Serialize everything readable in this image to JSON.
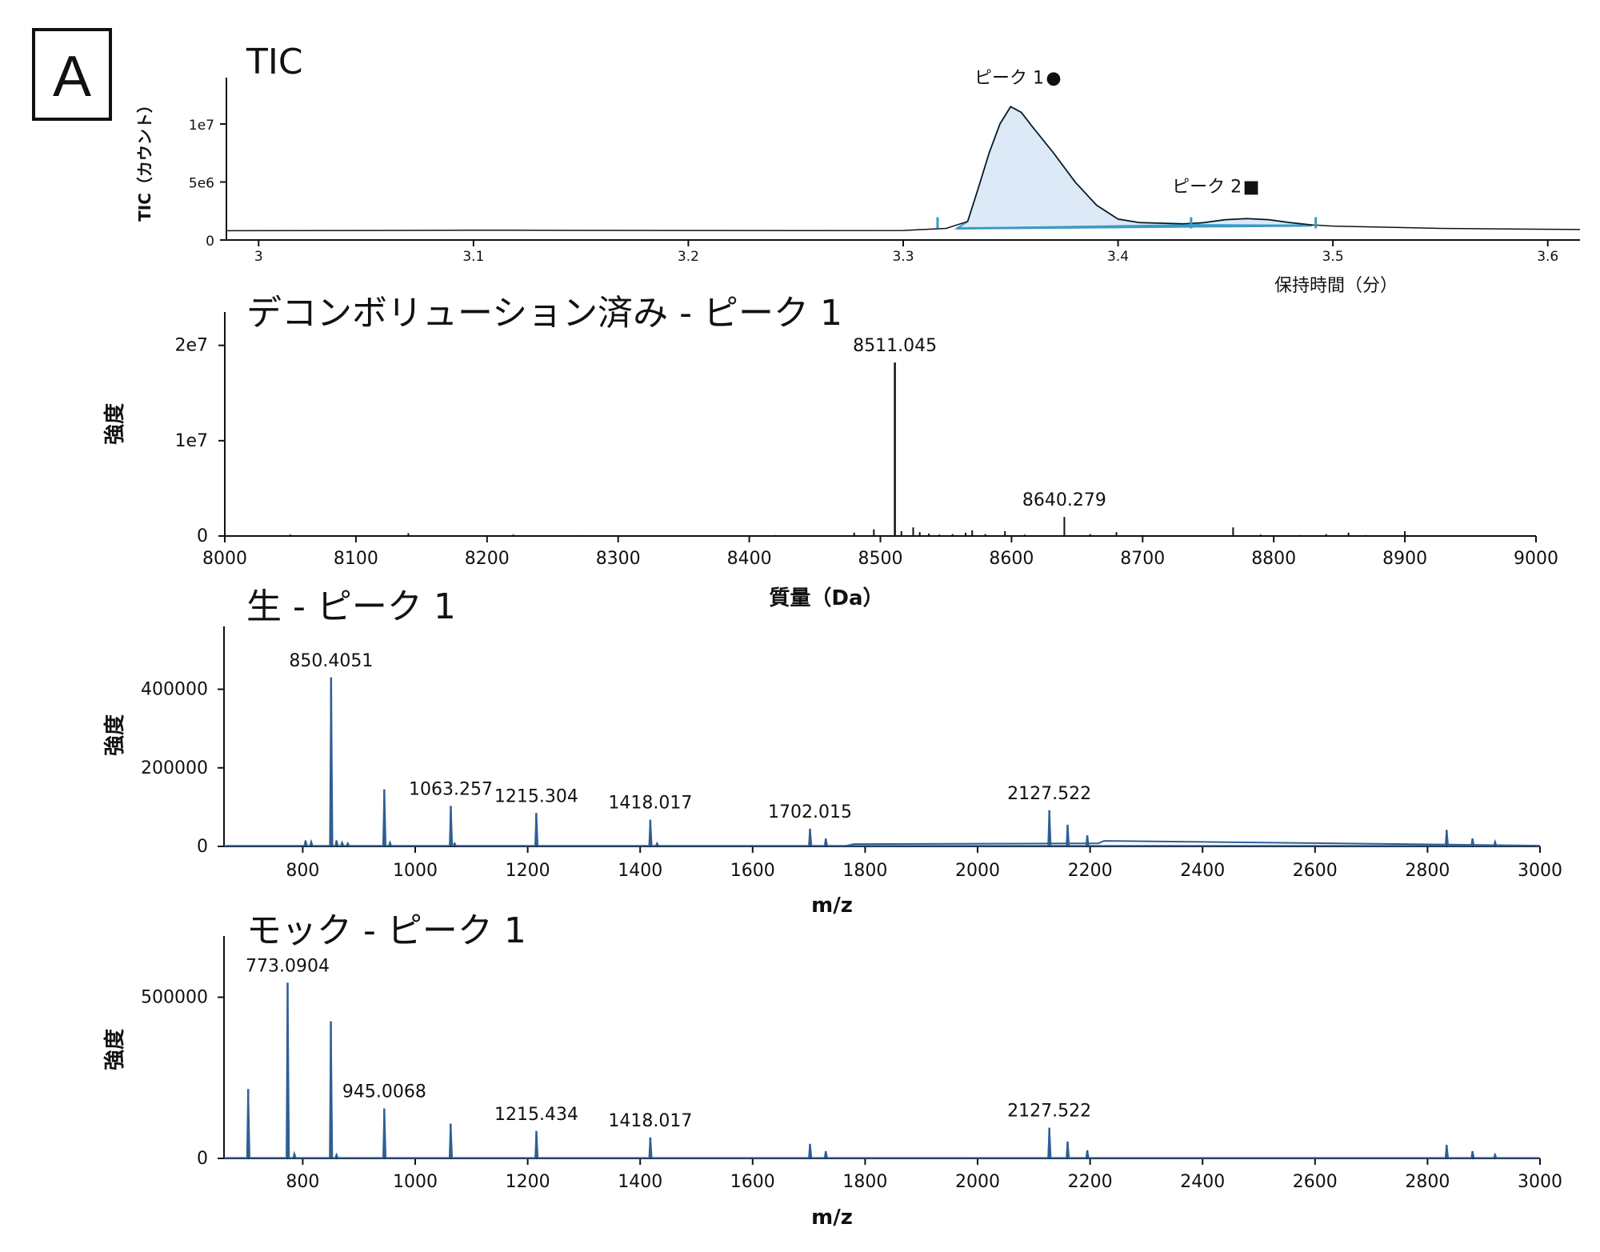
{
  "panel_label": "A",
  "colors": {
    "spectrum": "#2f5f96",
    "tic_line": "#3a9ac8",
    "tic_fill": "#dde9f6",
    "baseline": "#111111"
  },
  "chart_data": [
    {
      "id": "tic",
      "type": "area",
      "title": "TIC",
      "xlabel": "保持時間（分）",
      "ylabel": "TIC（カウント）",
      "xlim": [
        2.985,
        3.615
      ],
      "ylim": [
        0,
        14000000
      ],
      "xticks": [
        3.0,
        3.1,
        3.2,
        3.3,
        3.4,
        3.5,
        3.6
      ],
      "xtick_labels": [
        "3",
        "3.1",
        "3.2",
        "3.3",
        "3.4",
        "3.5",
        "3.6"
      ],
      "yticks": [
        0,
        5000000,
        10000000
      ],
      "ytick_labels": [
        "0",
        "5e6",
        "1e7"
      ],
      "series": [
        {
          "x": [
            2.985,
            3.05,
            3.1,
            3.15,
            3.2,
            3.25,
            3.3,
            3.32,
            3.33,
            3.335,
            3.34,
            3.345,
            3.35,
            3.355,
            3.36,
            3.37,
            3.38,
            3.39,
            3.4,
            3.41,
            3.42,
            3.43,
            3.44,
            3.45,
            3.46,
            3.47,
            3.48,
            3.49,
            3.5,
            3.55,
            3.615
          ],
          "y": [
            800000,
            820000,
            850000,
            830000,
            820000,
            810000,
            820000,
            1000000,
            1600000,
            4500000,
            7500000,
            10000000,
            11500000,
            11000000,
            9800000,
            7500000,
            5000000,
            3000000,
            1800000,
            1500000,
            1450000,
            1400000,
            1500000,
            1750000,
            1850000,
            1750000,
            1500000,
            1300000,
            1200000,
            1000000,
            900000
          ]
        }
      ],
      "integrated_peaks": [
        {
          "start": [
            3.325,
            1000000
          ],
          "end": [
            3.435,
            1300000
          ],
          "x": [
            3.325,
            3.33,
            3.335,
            3.34,
            3.345,
            3.35,
            3.355,
            3.36,
            3.37,
            3.38,
            3.39,
            3.4,
            3.41,
            3.42,
            3.43,
            3.435
          ],
          "y": [
            1000000,
            1600000,
            4500000,
            7500000,
            10000000,
            11500000,
            11000000,
            9800000,
            7500000,
            5000000,
            3000000,
            1800000,
            1500000,
            1450000,
            1400000,
            1350000
          ]
        },
        {
          "start": [
            3.435,
            1300000
          ],
          "end": [
            3.49,
            1250000
          ],
          "x": [
            3.435,
            3.44,
            3.45,
            3.46,
            3.47,
            3.48,
            3.49
          ],
          "y": [
            1350000,
            1500000,
            1750000,
            1850000,
            1750000,
            1500000,
            1300000
          ]
        }
      ],
      "markers_x": [
        3.316,
        3.434,
        3.492
      ],
      "annotations": [
        {
          "text": "ピーク 1",
          "symbol": "●",
          "x": 3.37,
          "y": 13500000
        },
        {
          "text": "ピーク 2",
          "symbol": "■",
          "x": 3.462,
          "y": 4100000
        }
      ]
    },
    {
      "id": "deconvoluted",
      "type": "bar",
      "title": "デコンボリューション済み - ピーク 1",
      "xlabel": "質量（Da）",
      "ylabel": "強度",
      "xlim": [
        8000,
        9000
      ],
      "ylim": [
        0,
        23500000
      ],
      "xticks": [
        8000,
        8100,
        8200,
        8300,
        8400,
        8500,
        8600,
        8700,
        8800,
        8900,
        9000
      ],
      "yticks": [
        0,
        10000000,
        20000000
      ],
      "ytick_labels": [
        "0",
        "1e7",
        "2e7"
      ],
      "x": [
        8050,
        8140,
        8220,
        8270,
        8350,
        8420,
        8480,
        8495,
        8511.045,
        8516,
        8525,
        8530,
        8537,
        8545,
        8555,
        8565,
        8570,
        8580,
        8595,
        8610,
        8640.279,
        8660,
        8680,
        8700,
        8769,
        8790,
        8820,
        8840,
        8857,
        8870,
        8900
      ],
      "y": [
        150000,
        300000,
        150000,
        100000,
        80000,
        100000,
        350000,
        700000,
        18200000,
        500000,
        900000,
        400000,
        250000,
        150000,
        200000,
        350000,
        600000,
        200000,
        500000,
        150000,
        2000000,
        200000,
        400000,
        100000,
        900000,
        150000,
        100000,
        200000,
        350000,
        100000,
        500000
      ],
      "peak_labels": [
        {
          "text": "8511.045",
          "x": 8511.045,
          "y": 18200000
        },
        {
          "text": "8640.279",
          "x": 8640.279,
          "y": 2000000
        }
      ]
    },
    {
      "id": "raw",
      "type": "line",
      "title": "生 - ピーク 1",
      "xlabel": "m/z",
      "ylabel": "強度",
      "xlim": [
        660,
        3000
      ],
      "ylim": [
        0,
        560000
      ],
      "xticks": [
        800,
        1000,
        1200,
        1400,
        1600,
        1800,
        2000,
        2200,
        2400,
        2600,
        2800,
        3000
      ],
      "yticks": [
        0,
        200000,
        400000
      ],
      "ytick_labels": [
        "0",
        "200000",
        "400000"
      ],
      "base_y": 1500,
      "spikes": [
        {
          "x": 805,
          "y": 15000
        },
        {
          "x": 815,
          "y": 12000
        },
        {
          "x": 850.4051,
          "y": 430000
        },
        {
          "x": 860,
          "y": 15000
        },
        {
          "x": 870,
          "y": 10000
        },
        {
          "x": 880,
          "y": 8000
        },
        {
          "x": 945,
          "y": 145000
        },
        {
          "x": 955,
          "y": 10000
        },
        {
          "x": 1063.257,
          "y": 103000
        },
        {
          "x": 1070,
          "y": 8000
        },
        {
          "x": 1215.304,
          "y": 85000
        },
        {
          "x": 1418.017,
          "y": 68000
        },
        {
          "x": 1430,
          "y": 8000
        },
        {
          "x": 1702.015,
          "y": 45000
        },
        {
          "x": 1730,
          "y": 20000
        },
        {
          "x": 2127.522,
          "y": 92000
        },
        {
          "x": 2160,
          "y": 55000
        },
        {
          "x": 2195,
          "y": 28000
        },
        {
          "x": 2834,
          "y": 42000
        },
        {
          "x": 2880,
          "y": 20000
        },
        {
          "x": 2920,
          "y": 12000
        }
      ],
      "plateaus": [
        {
          "x": [
            1765,
            1780,
            2000,
            2215,
            2225,
            2560,
            2990,
            3000
          ],
          "y": [
            1500,
            6000,
            7000,
            8000,
            14000,
            9000,
            2000,
            1500
          ]
        }
      ],
      "peak_labels": [
        {
          "text": "850.4051",
          "x": 850.4051,
          "y": 430000
        },
        {
          "text": "1063.257",
          "x": 1063.257,
          "y": 103000
        },
        {
          "text": "1215.304",
          "x": 1215.304,
          "y": 85000
        },
        {
          "text": "1418.017",
          "x": 1418.017,
          "y": 68000
        },
        {
          "text": "1702.015",
          "x": 1702.015,
          "y": 45000
        },
        {
          "text": "2127.522",
          "x": 2127.522,
          "y": 92000
        }
      ]
    },
    {
      "id": "mock",
      "type": "line",
      "title": "モック - ピーク 1",
      "xlabel": "m/z",
      "ylabel": "強度",
      "xlim": [
        660,
        3000
      ],
      "ylim": [
        0,
        690000
      ],
      "xticks": [
        800,
        1000,
        1200,
        1400,
        1600,
        1800,
        2000,
        2200,
        2400,
        2600,
        2800,
        3000
      ],
      "yticks": [
        0,
        500000
      ],
      "ytick_labels": [
        "0",
        "500000"
      ],
      "base_y": 1500,
      "spikes": [
        {
          "x": 703,
          "y": 215000
        },
        {
          "x": 773.0904,
          "y": 545000
        },
        {
          "x": 785,
          "y": 15000
        },
        {
          "x": 850,
          "y": 425000
        },
        {
          "x": 860,
          "y": 12000
        },
        {
          "x": 945.0068,
          "y": 155000
        },
        {
          "x": 1063,
          "y": 108000
        },
        {
          "x": 1215.434,
          "y": 85000
        },
        {
          "x": 1418.017,
          "y": 65000
        },
        {
          "x": 1702,
          "y": 45000
        },
        {
          "x": 1730,
          "y": 22000
        },
        {
          "x": 2127.522,
          "y": 95000
        },
        {
          "x": 2160,
          "y": 52000
        },
        {
          "x": 2195,
          "y": 25000
        },
        {
          "x": 2834,
          "y": 42000
        },
        {
          "x": 2880,
          "y": 22000
        },
        {
          "x": 2920,
          "y": 12000
        }
      ],
      "plateaus": [],
      "peak_labels": [
        {
          "text": "773.0904",
          "x": 773.0904,
          "y": 545000
        },
        {
          "text": "945.0068",
          "x": 945.0068,
          "y": 155000
        },
        {
          "text": "1215.434",
          "x": 1215.434,
          "y": 85000
        },
        {
          "text": "1418.017",
          "x": 1418.017,
          "y": 65000
        },
        {
          "text": "2127.522",
          "x": 2127.522,
          "y": 95000
        }
      ]
    }
  ]
}
